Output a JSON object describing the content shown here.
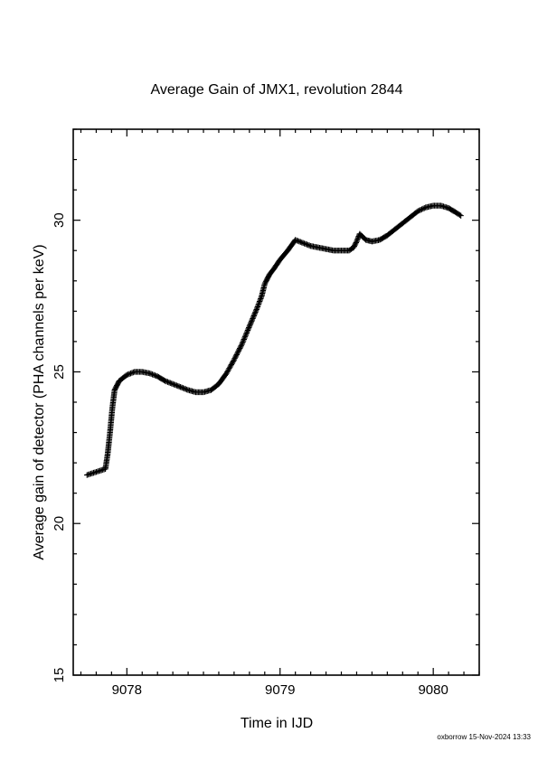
{
  "chart_data": {
    "type": "scatter",
    "title": "Average Gain of JMX1, revolution 2844",
    "xlabel": "Time in IJD",
    "ylabel": "Average gain of detector (PHA channels per keV)",
    "xlim": [
      9077.65,
      9080.3
    ],
    "ylim": [
      15,
      33
    ],
    "xticks": [
      9078,
      9079,
      9080
    ],
    "xtick_labels": [
      "9078",
      "9079",
      "9080"
    ],
    "yticks": [
      15,
      20,
      25,
      30
    ],
    "ytick_labels": [
      "15",
      "20",
      "25",
      "30"
    ],
    "grid": false,
    "marker": "plus",
    "color": "#000000",
    "series": [
      {
        "x": [
          9077.74,
          9077.8,
          9077.86,
          9077.875,
          9077.89,
          9077.905,
          9077.92,
          9077.95,
          9078.0,
          9078.05,
          9078.1,
          9078.15,
          9078.2,
          9078.25,
          9078.3,
          9078.35,
          9078.4,
          9078.45,
          9078.5,
          9078.55,
          9078.6,
          9078.65,
          9078.7,
          9078.75,
          9078.8,
          9078.85,
          9078.88,
          9078.9,
          9078.93,
          9078.96,
          9079.0,
          9079.05,
          9079.1,
          9079.15,
          9079.2,
          9079.25,
          9079.3,
          9079.35,
          9079.4,
          9079.45,
          9079.48,
          9079.5,
          9079.52,
          9079.54,
          9079.56,
          9079.6,
          9079.65,
          9079.7,
          9079.75,
          9079.8,
          9079.85,
          9079.9,
          9079.95,
          9080.0,
          9080.05,
          9080.1,
          9080.15,
          9080.18
        ],
        "y": [
          21.6,
          21.7,
          21.8,
          22.3,
          23.0,
          23.8,
          24.4,
          24.7,
          24.9,
          25.0,
          25.0,
          24.95,
          24.85,
          24.7,
          24.6,
          24.5,
          24.4,
          24.33,
          24.33,
          24.4,
          24.6,
          24.95,
          25.4,
          25.9,
          26.5,
          27.1,
          27.5,
          27.9,
          28.2,
          28.4,
          28.7,
          29.0,
          29.35,
          29.25,
          29.15,
          29.1,
          29.05,
          29.0,
          29.0,
          29.0,
          29.1,
          29.3,
          29.55,
          29.45,
          29.35,
          29.3,
          29.35,
          29.5,
          29.7,
          29.9,
          30.1,
          30.3,
          30.42,
          30.48,
          30.48,
          30.4,
          30.25,
          30.15
        ]
      }
    ]
  },
  "footer": {
    "credit": "oxborrow 15-Nov-2024 13:33"
  }
}
